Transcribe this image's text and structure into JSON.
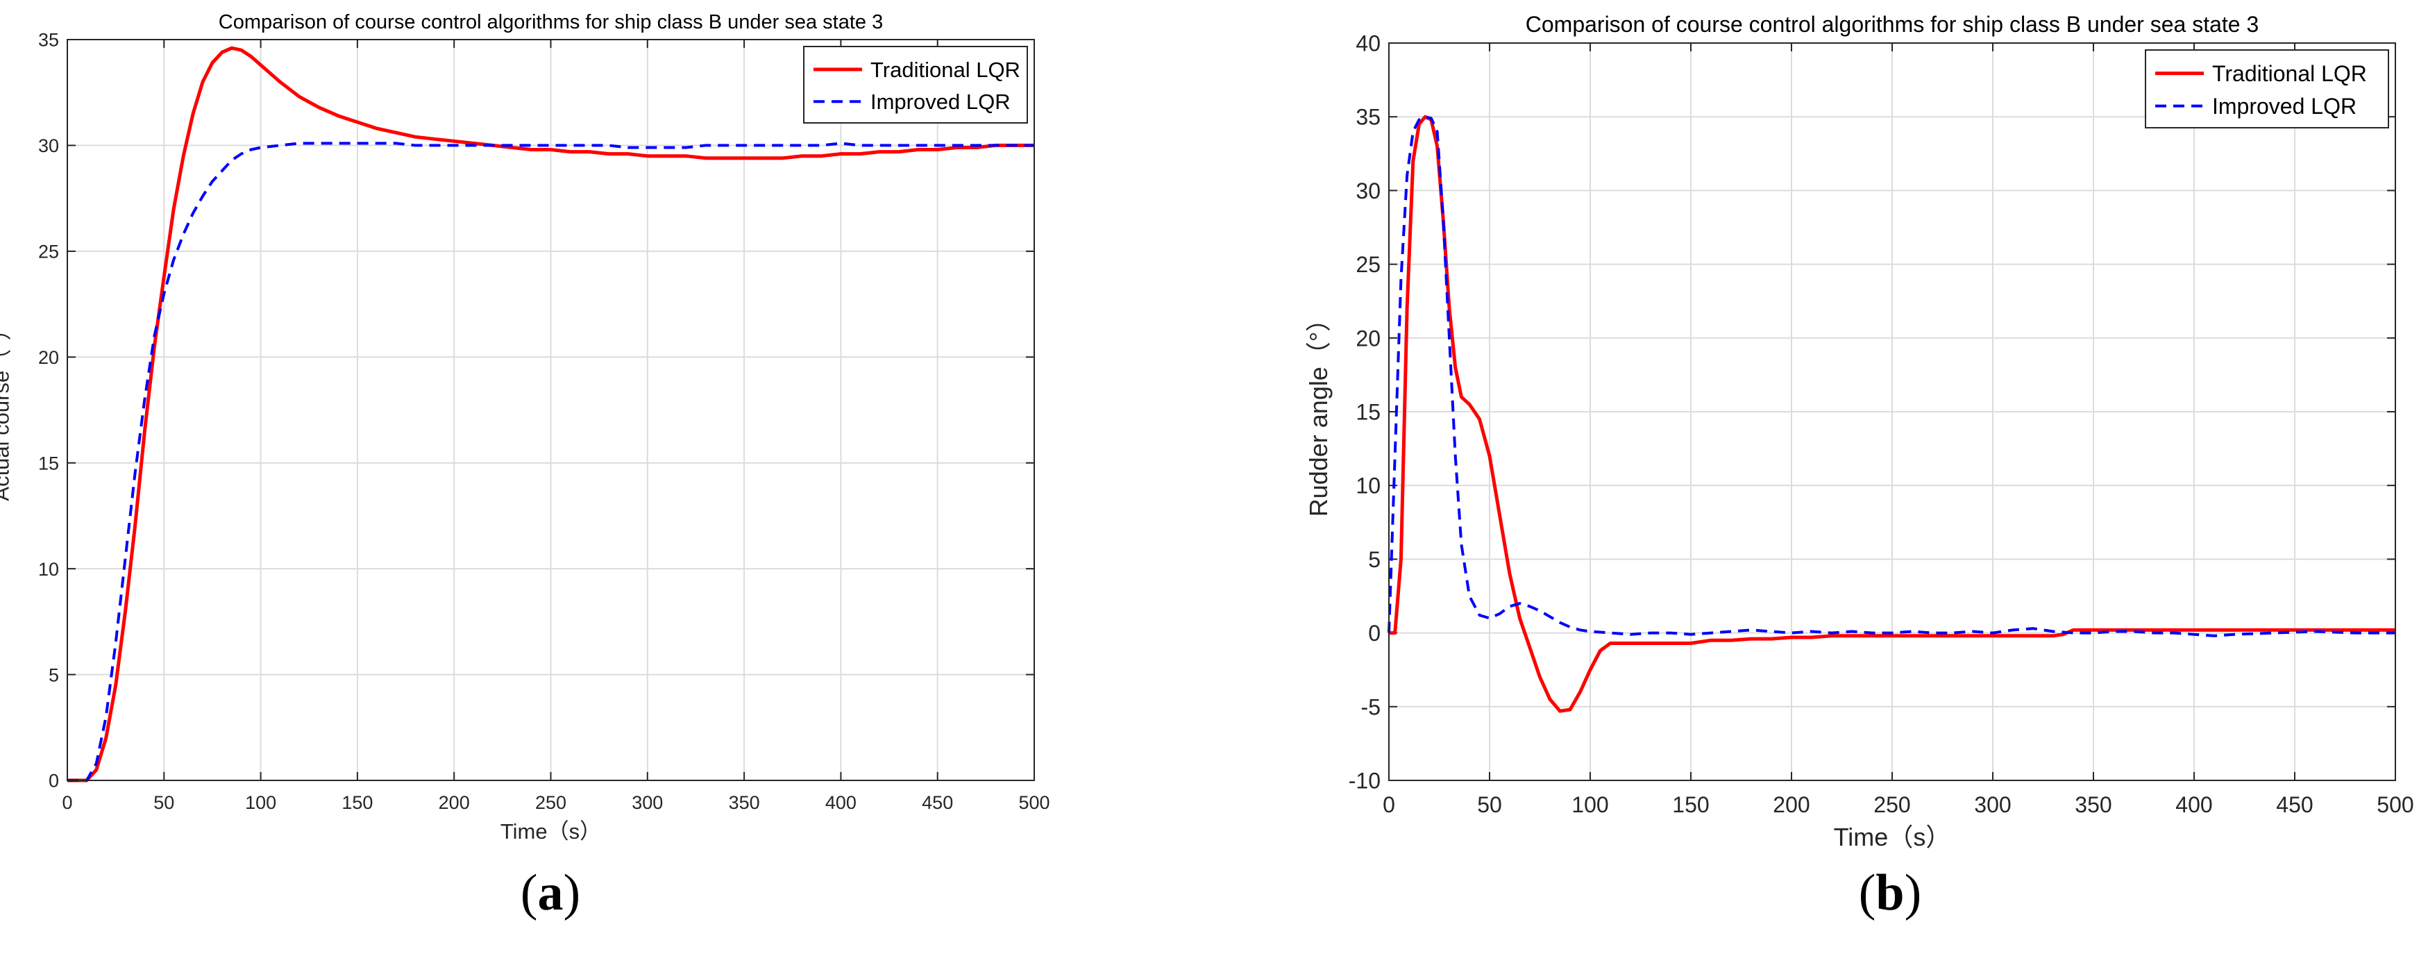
{
  "chart_data": [
    {
      "type": "line",
      "panel_label_open": "(",
      "panel_label": "a",
      "panel_label_close": ")",
      "title": "Comparison of course control algorithms for ship class B under sea state 3",
      "xlabel": "Time（s）",
      "ylabel": "Actual course（°）",
      "xlim": [
        0,
        500
      ],
      "ylim": [
        0,
        35
      ],
      "xticks": [
        0,
        50,
        100,
        150,
        200,
        250,
        300,
        350,
        400,
        450,
        500
      ],
      "yticks": [
        0,
        5,
        10,
        15,
        20,
        25,
        30,
        35
      ],
      "grid": true,
      "legend_position": "top-right",
      "series": [
        {
          "name": "Traditional LQR",
          "color": "#ff0000",
          "style": "solid",
          "x": [
            0,
            10,
            15,
            20,
            25,
            30,
            35,
            40,
            45,
            50,
            55,
            60,
            65,
            70,
            75,
            80,
            85,
            90,
            95,
            100,
            110,
            120,
            130,
            140,
            150,
            160,
            170,
            180,
            190,
            200,
            210,
            220,
            230,
            240,
            250,
            260,
            270,
            280,
            290,
            300,
            310,
            320,
            330,
            340,
            350,
            360,
            370,
            380,
            390,
            400,
            410,
            420,
            430,
            440,
            450,
            460,
            470,
            480,
            490,
            500
          ],
          "y": [
            0,
            0,
            0.5,
            2.0,
            4.5,
            8.0,
            12.0,
            16.5,
            20.5,
            23.8,
            27.0,
            29.5,
            31.5,
            33.0,
            33.9,
            34.4,
            34.6,
            34.5,
            34.2,
            33.8,
            33.0,
            32.3,
            31.8,
            31.4,
            31.1,
            30.8,
            30.6,
            30.4,
            30.3,
            30.2,
            30.1,
            30.0,
            29.9,
            29.8,
            29.8,
            29.7,
            29.7,
            29.6,
            29.6,
            29.5,
            29.5,
            29.5,
            29.4,
            29.4,
            29.4,
            29.4,
            29.4,
            29.5,
            29.5,
            29.6,
            29.6,
            29.7,
            29.7,
            29.8,
            29.8,
            29.9,
            29.9,
            30.0,
            30.0,
            30.0
          ]
        },
        {
          "name": "Improved LQR",
          "color": "#0000ff",
          "style": "dashed",
          "x": [
            0,
            10,
            15,
            20,
            25,
            30,
            35,
            40,
            45,
            50,
            55,
            60,
            65,
            70,
            75,
            80,
            85,
            90,
            95,
            100,
            110,
            120,
            130,
            140,
            150,
            160,
            170,
            180,
            190,
            200,
            210,
            220,
            230,
            240,
            250,
            260,
            270,
            280,
            290,
            300,
            310,
            320,
            330,
            340,
            350,
            360,
            370,
            380,
            390,
            400,
            410,
            420,
            430,
            440,
            450,
            460,
            470,
            480,
            490,
            500
          ],
          "y": [
            0,
            0,
            0.8,
            3.0,
            6.5,
            10.5,
            14.5,
            18.0,
            21.0,
            23.0,
            24.6,
            25.8,
            26.8,
            27.6,
            28.3,
            28.8,
            29.3,
            29.6,
            29.8,
            29.9,
            30.0,
            30.1,
            30.1,
            30.1,
            30.1,
            30.1,
            30.1,
            30.0,
            30.0,
            30.0,
            30.0,
            30.0,
            30.0,
            30.0,
            30.0,
            30.0,
            30.0,
            30.0,
            29.9,
            29.9,
            29.9,
            29.9,
            30.0,
            30.0,
            30.0,
            30.0,
            30.0,
            30.0,
            30.0,
            30.1,
            30.0,
            30.0,
            30.0,
            30.0,
            30.0,
            30.0,
            30.0,
            30.0,
            30.0,
            30.0
          ]
        }
      ]
    },
    {
      "type": "line",
      "panel_label_open": "(",
      "panel_label": "b",
      "panel_label_close": ")",
      "title": "Comparison of course control algorithms for ship class B under sea state 3",
      "xlabel": "Time（s）",
      "ylabel": "Rudder angle（°）",
      "xlim": [
        0,
        500
      ],
      "ylim": [
        -10,
        40
      ],
      "xticks": [
        0,
        50,
        100,
        150,
        200,
        250,
        300,
        350,
        400,
        450,
        500
      ],
      "yticks": [
        -10,
        -5,
        0,
        5,
        10,
        15,
        20,
        25,
        30,
        35,
        40
      ],
      "grid": true,
      "legend_position": "top-right",
      "series": [
        {
          "name": "Traditional LQR",
          "color": "#ff0000",
          "style": "solid",
          "x": [
            0,
            3,
            6,
            9,
            12,
            15,
            18,
            21,
            24,
            27,
            30,
            33,
            36,
            40,
            45,
            50,
            55,
            60,
            65,
            70,
            75,
            80,
            85,
            90,
            95,
            100,
            105,
            110,
            120,
            130,
            140,
            150,
            160,
            170,
            180,
            190,
            200,
            210,
            220,
            230,
            240,
            250,
            260,
            270,
            280,
            290,
            300,
            310,
            320,
            330,
            335,
            340,
            350,
            360,
            380,
            400,
            420,
            440,
            460,
            480,
            500
          ],
          "y": [
            0,
            0,
            5,
            22,
            32,
            34.5,
            35,
            34.8,
            33,
            28,
            22,
            18,
            16,
            15.5,
            14.5,
            12,
            8,
            4,
            1,
            -1,
            -3,
            -4.5,
            -5.3,
            -5.2,
            -4,
            -2.5,
            -1.2,
            -0.7,
            -0.7,
            -0.7,
            -0.7,
            -0.7,
            -0.5,
            -0.5,
            -0.4,
            -0.4,
            -0.3,
            -0.3,
            -0.2,
            -0.2,
            -0.2,
            -0.2,
            -0.2,
            -0.2,
            -0.2,
            -0.2,
            -0.2,
            -0.2,
            -0.2,
            -0.2,
            -0.1,
            0.2,
            0.2,
            0.2,
            0.2,
            0.2,
            0.2,
            0.2,
            0.2,
            0.2,
            0.2
          ]
        },
        {
          "name": "Improved LQR",
          "color": "#0000ff",
          "style": "dashed",
          "x": [
            0,
            3,
            6,
            9,
            12,
            15,
            18,
            21,
            24,
            27,
            30,
            33,
            36,
            40,
            45,
            50,
            55,
            60,
            65,
            70,
            75,
            80,
            85,
            90,
            95,
            100,
            110,
            120,
            130,
            140,
            150,
            160,
            170,
            180,
            190,
            200,
            210,
            220,
            230,
            240,
            250,
            260,
            270,
            280,
            290,
            300,
            310,
            320,
            330,
            340,
            350,
            360,
            370,
            380,
            390,
            400,
            410,
            420,
            440,
            460,
            480,
            500
          ],
          "y": [
            0,
            12,
            24,
            31,
            34,
            34.8,
            35,
            34.9,
            34,
            28,
            20,
            12,
            6,
            2.5,
            1.2,
            1,
            1.3,
            1.8,
            2,
            1.8,
            1.5,
            1.1,
            0.7,
            0.4,
            0.2,
            0.1,
            0,
            -0.1,
            0,
            0,
            -0.1,
            0,
            0.1,
            0.2,
            0.1,
            0,
            0.1,
            0,
            0.1,
            0,
            0,
            0.1,
            0,
            0,
            0.1,
            0,
            0.2,
            0.3,
            0.1,
            0,
            0,
            0.1,
            0.1,
            0,
            0,
            -0.1,
            -0.2,
            -0.1,
            0,
            0.1,
            0,
            0
          ]
        }
      ]
    }
  ]
}
